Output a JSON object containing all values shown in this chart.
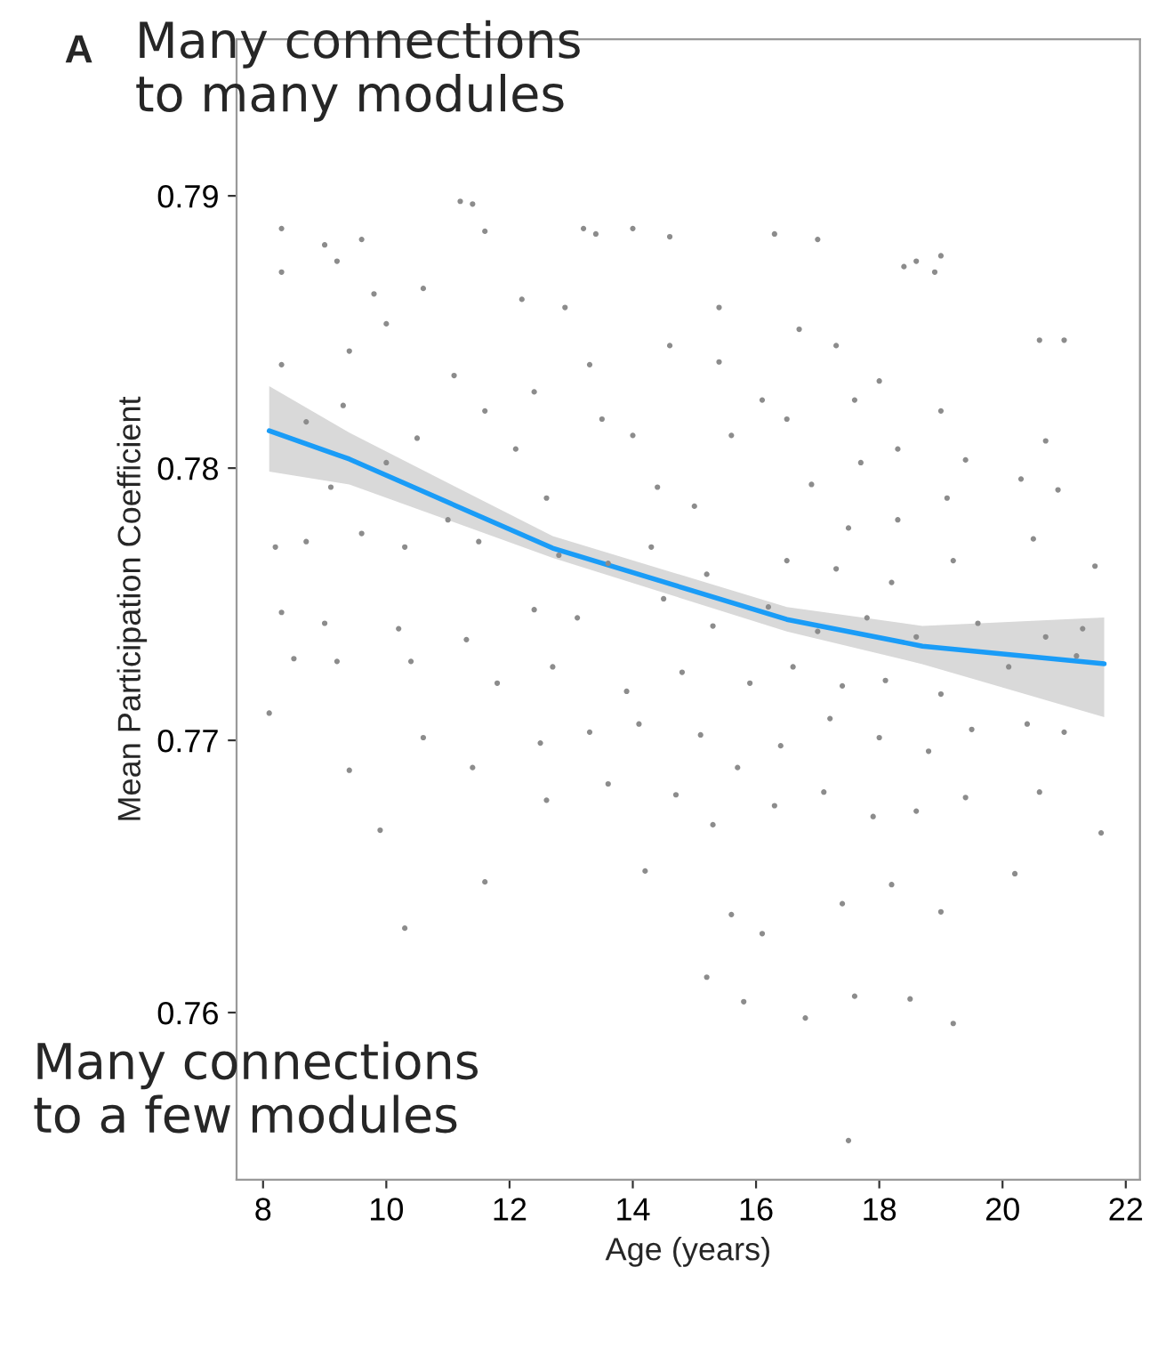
{
  "chart_data": {
    "type": "scatter",
    "xlabel": "Age (years)",
    "ylabel": "Mean Participation Coefficient",
    "annotations": [
      "A",
      "Many connections\nto many modules",
      "Many connections\nto a few modules"
    ],
    "xlim": [
      7.57,
      22.23
    ],
    "ylim": [
      0.75386,
      0.79575
    ],
    "xticks": [
      8,
      10,
      12,
      14,
      16,
      18,
      20,
      22
    ],
    "yticks": [
      0.76,
      0.77,
      0.78,
      0.79
    ],
    "grid": false,
    "legend": false,
    "series": [
      {
        "type": "scatter",
        "color": "#8c8c8c",
        "marker": "circle",
        "x": [
          8.3,
          8.3,
          9.0,
          9.2,
          9.6,
          11.2,
          11.4,
          11.6,
          13.2,
          13.4,
          14.0,
          14.6,
          16.3,
          17.0,
          18.6,
          18.9,
          19.0,
          18.4,
          9.8,
          10.6,
          12.2,
          12.9,
          15.4,
          16.7,
          17.3,
          20.6,
          21.0,
          8.3,
          9.4,
          10.0,
          11.1,
          12.4,
          13.3,
          14.6,
          15.4,
          16.1,
          17.6,
          18.0,
          19.0,
          8.7,
          9.3,
          10.5,
          11.6,
          12.1,
          13.5,
          14.0,
          15.6,
          16.5,
          17.7,
          18.3,
          19.4,
          20.7,
          20.9,
          9.1,
          10.0,
          11.0,
          12.6,
          14.4,
          15.0,
          16.9,
          17.5,
          18.3,
          19.1,
          20.3,
          8.2,
          8.7,
          9.6,
          10.3,
          11.5,
          12.8,
          13.6,
          14.3,
          15.2,
          16.5,
          17.3,
          18.2,
          19.2,
          20.5,
          21.5,
          8.3,
          9.0,
          10.2,
          11.3,
          12.4,
          13.1,
          14.5,
          15.3,
          16.2,
          17.0,
          17.8,
          18.6,
          19.6,
          20.7,
          21.3,
          8.5,
          9.2,
          10.4,
          11.8,
          12.7,
          13.9,
          14.8,
          15.9,
          16.6,
          17.4,
          18.1,
          19.0,
          20.1,
          21.2,
          8.1,
          9.4,
          10.6,
          11.4,
          12.5,
          13.3,
          14.1,
          15.1,
          15.7,
          16.4,
          17.2,
          18.0,
          18.8,
          19.5,
          20.4,
          21.0,
          9.9,
          12.6,
          13.6,
          14.7,
          15.3,
          16.3,
          17.1,
          17.9,
          18.6,
          19.4,
          20.6,
          21.6,
          10.3,
          11.6,
          14.2,
          15.6,
          16.1,
          17.4,
          18.2,
          19.0,
          20.2,
          15.2,
          15.8,
          16.8,
          17.6,
          18.5,
          19.2,
          17.5
        ],
        "values": [
          0.7888,
          0.7872,
          0.7882,
          0.7876,
          0.7884,
          0.7898,
          0.7897,
          0.7887,
          0.7888,
          0.7886,
          0.7888,
          0.7885,
          0.7886,
          0.7884,
          0.7876,
          0.7872,
          0.7878,
          0.7874,
          0.7864,
          0.7866,
          0.7862,
          0.7859,
          0.7859,
          0.7851,
          0.7845,
          0.7847,
          0.7847,
          0.7838,
          0.7843,
          0.7853,
          0.7834,
          0.7828,
          0.7838,
          0.7845,
          0.7839,
          0.7825,
          0.7825,
          0.7832,
          0.7821,
          0.7817,
          0.7823,
          0.7811,
          0.7821,
          0.7807,
          0.7818,
          0.7812,
          0.7812,
          0.7818,
          0.7802,
          0.7807,
          0.7803,
          0.781,
          0.7792,
          0.7793,
          0.7802,
          0.7781,
          0.7789,
          0.7793,
          0.7786,
          0.7794,
          0.7778,
          0.7781,
          0.7789,
          0.7796,
          0.7771,
          0.7773,
          0.7776,
          0.7771,
          0.7773,
          0.7768,
          0.7765,
          0.7771,
          0.7761,
          0.7766,
          0.7763,
          0.7758,
          0.7766,
          0.7774,
          0.7764,
          0.7747,
          0.7743,
          0.7741,
          0.7737,
          0.7748,
          0.7745,
          0.7752,
          0.7742,
          0.7749,
          0.774,
          0.7745,
          0.7738,
          0.7743,
          0.7738,
          0.7741,
          0.773,
          0.7729,
          0.7729,
          0.7721,
          0.7727,
          0.7718,
          0.7725,
          0.7721,
          0.7727,
          0.772,
          0.7722,
          0.7717,
          0.7727,
          0.7731,
          0.771,
          0.7689,
          0.7701,
          0.769,
          0.7699,
          0.7703,
          0.7706,
          0.7702,
          0.769,
          0.7698,
          0.7708,
          0.7701,
          0.7696,
          0.7704,
          0.7706,
          0.7703,
          0.7667,
          0.7678,
          0.7684,
          0.768,
          0.7669,
          0.7676,
          0.7681,
          0.7672,
          0.7674,
          0.7679,
          0.7681,
          0.7666,
          0.7631,
          0.7648,
          0.7652,
          0.7636,
          0.7629,
          0.764,
          0.7647,
          0.7637,
          0.7651,
          0.7613,
          0.7604,
          0.7598,
          0.7606,
          0.7605,
          0.7596,
          0.7553
        ]
      },
      {
        "type": "line",
        "color": "#1a9cf7",
        "line_style": "solid",
        "x": [
          8.1,
          9.4,
          12.7,
          16.5,
          18.7,
          21.65
        ],
        "values": [
          0.78137,
          0.78033,
          0.77706,
          0.77444,
          0.77346,
          0.77281
        ],
        "lower": [
          0.77987,
          0.7794,
          0.7767,
          0.774,
          0.7728,
          0.77085
        ],
        "upper": [
          0.78301,
          0.7813,
          0.7775,
          0.7749,
          0.7742,
          0.77451
        ]
      }
    ]
  }
}
